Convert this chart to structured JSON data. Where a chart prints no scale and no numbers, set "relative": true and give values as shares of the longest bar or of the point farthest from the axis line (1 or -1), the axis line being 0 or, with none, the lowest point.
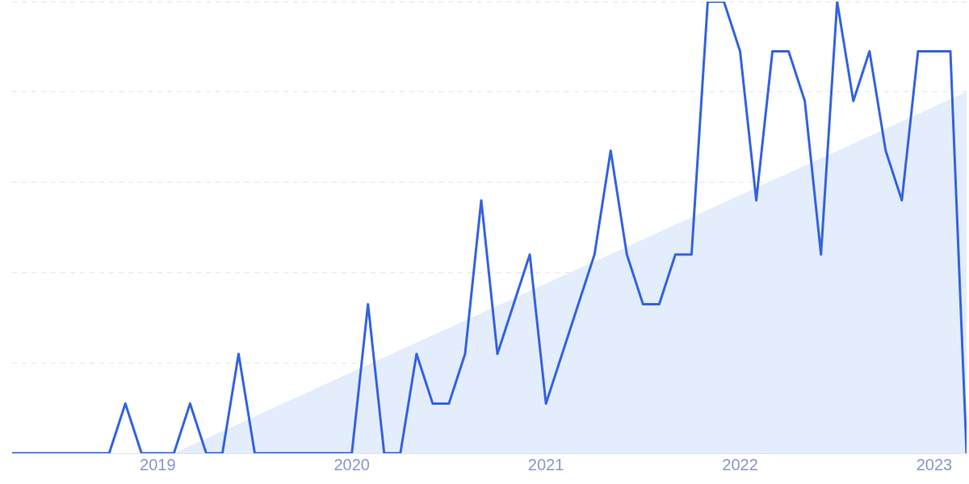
{
  "chart_data": {
    "type": "line",
    "relative": true,
    "grid": "y",
    "legend": false,
    "marker": "none",
    "line_style": "solid",
    "x": [
      "2018-04",
      "2018-05",
      "2018-06",
      "2018-07",
      "2018-08",
      "2018-09",
      "2018-10",
      "2018-11",
      "2018-12",
      "2019-01",
      "2019-02",
      "2019-03",
      "2019-04",
      "2019-05",
      "2019-06",
      "2019-07",
      "2019-08",
      "2019-09",
      "2019-10",
      "2019-11",
      "2019-12",
      "2020-01",
      "2020-02",
      "2020-03",
      "2020-04",
      "2020-05",
      "2020-06",
      "2020-07",
      "2020-08",
      "2020-09",
      "2020-10",
      "2020-11",
      "2020-12",
      "2021-01",
      "2021-02",
      "2021-03",
      "2021-04",
      "2021-05",
      "2021-06",
      "2021-07",
      "2021-08",
      "2021-09",
      "2021-10",
      "2021-11",
      "2021-12",
      "2022-01",
      "2022-02",
      "2022-03",
      "2022-04",
      "2022-05",
      "2022-06",
      "2022-07",
      "2022-08",
      "2022-09",
      "2022-10",
      "2022-11",
      "2022-12",
      "2023-01",
      "2023-02",
      "2023-03"
    ],
    "xlim": [
      "2018-04",
      "2023-03"
    ],
    "xticks": [
      {
        "value": "2019",
        "label": "2019"
      },
      {
        "value": "2020",
        "label": "2020"
      },
      {
        "value": "2021",
        "label": "2021"
      },
      {
        "value": "2022",
        "label": "2022"
      },
      {
        "value": "2023",
        "label": "2023"
      }
    ],
    "series": [
      {
        "color": "#3563e0",
        "values": [
          0,
          0,
          0,
          0,
          0,
          0,
          0,
          0.11,
          0,
          0,
          0,
          0.11,
          0,
          0,
          0.22,
          0,
          0,
          0,
          0,
          0,
          0,
          0,
          0.33,
          0,
          0,
          0.22,
          0.11,
          0.11,
          0.22,
          0.56,
          0.22,
          0.33,
          0.44,
          0.11,
          0.22,
          0.33,
          0.44,
          0.67,
          0.44,
          0.33,
          0.33,
          0.44,
          0.44,
          1,
          1,
          0.89,
          0.56,
          0.89,
          0.89,
          0.78,
          0.44,
          1,
          0.78,
          0.89,
          0.67,
          0.56,
          0.89,
          0.89,
          0.89,
          0
        ]
      },
      {
        "type": "area",
        "color": "#e3edfb",
        "x": [
          "2019-02",
          "2023-03"
        ],
        "values": [
          0,
          0.8
        ]
      }
    ]
  }
}
